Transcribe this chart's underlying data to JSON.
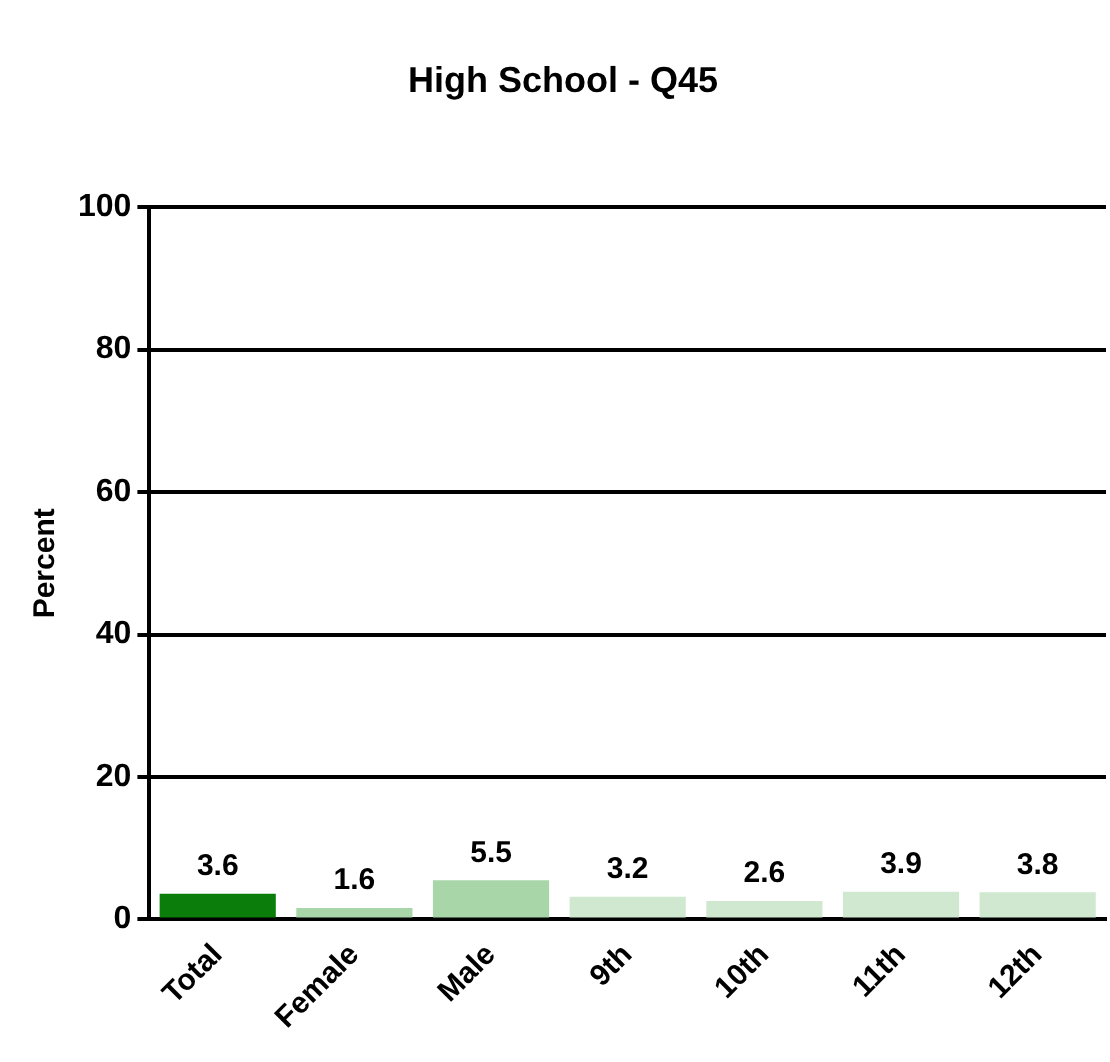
{
  "chart_data": {
    "type": "bar",
    "title": "High School - Q45",
    "ylabel": "Percent",
    "categories": [
      "Total",
      "Female",
      "Male",
      "9th",
      "10th",
      "11th",
      "12th"
    ],
    "values": [
      3.6,
      1.6,
      5.5,
      3.2,
      2.6,
      3.9,
      3.8
    ],
    "colors": [
      "#0a7d0a",
      "#a9d6a9",
      "#a9d6a9",
      "#cfe8cf",
      "#cfe8cf",
      "#cfe8cf",
      "#cfe8cf"
    ],
    "ylim": [
      0,
      100
    ],
    "yticks": [
      0,
      20,
      40,
      60,
      80,
      100
    ],
    "grid": "y",
    "data_labels": true,
    "legend": false
  }
}
